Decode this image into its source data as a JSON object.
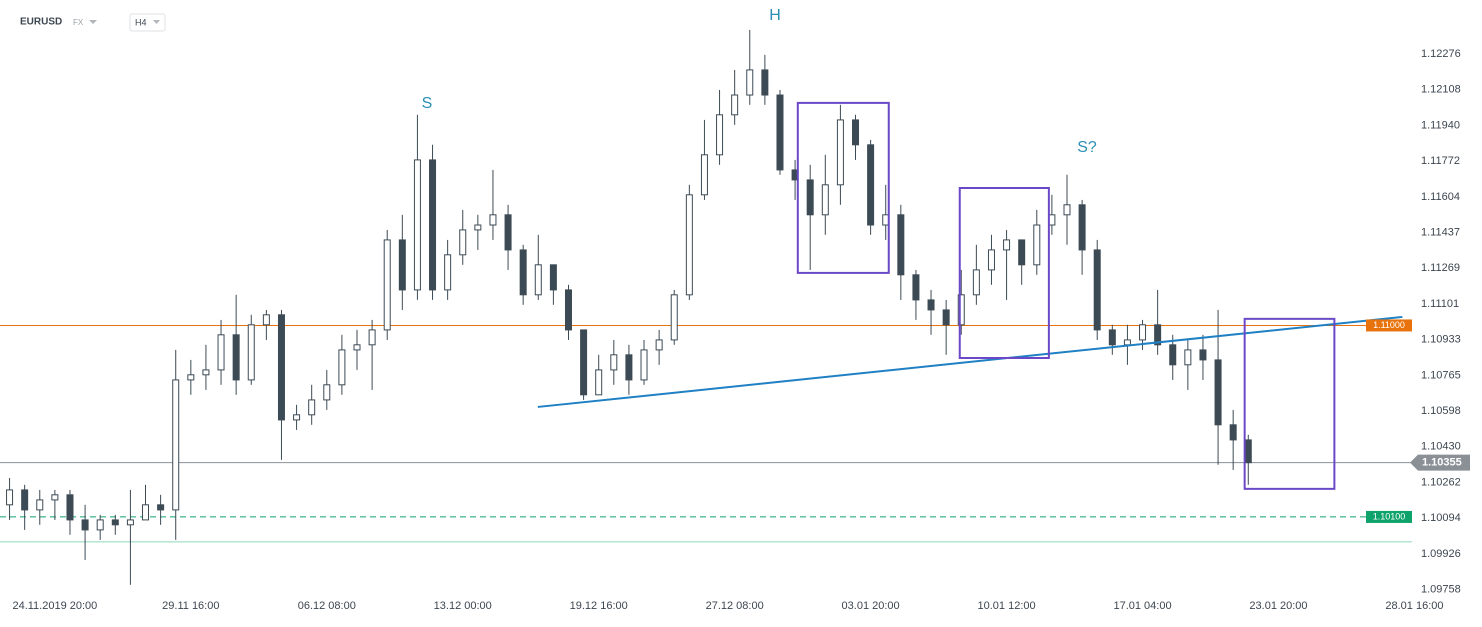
{
  "header": {
    "symbol": "EURUSD",
    "market": "FX",
    "timeframe": "H4"
  },
  "chart_data": {
    "type": "candlestick",
    "categories": [
      null,
      null,
      null,
      "24.11.2019 20:00",
      null,
      null,
      null,
      null,
      null,
      null,
      null,
      null,
      "29.11 16:00",
      null,
      null,
      null,
      null,
      null,
      null,
      null,
      null,
      "06.12 08:00",
      null,
      null,
      null,
      null,
      null,
      null,
      null,
      null,
      "13.12 00:00",
      null,
      null,
      null,
      null,
      null,
      null,
      null,
      null,
      "19.12 16:00",
      null,
      null,
      null,
      null,
      null,
      null,
      null,
      null,
      "27.12 08:00",
      null,
      null,
      null,
      null,
      null,
      null,
      null,
      null,
      "03.01 20:00",
      null,
      null,
      null,
      null,
      null,
      null,
      null,
      null,
      "10.01 12:00",
      null,
      null,
      null,
      null,
      null,
      null,
      null,
      null,
      "17.01 04:00",
      null,
      null,
      null,
      null,
      null,
      null,
      null,
      null,
      "23.01 20:00",
      null,
      null,
      null,
      null,
      null,
      null,
      null,
      null,
      "28.01 16:00"
    ],
    "open": [
      1.10157,
      1.10227,
      1.10133,
      1.1018,
      1.10204,
      1.10086,
      1.10039,
      1.10086,
      1.10063,
      1.10086,
      1.10157,
      1.10133,
      1.10744,
      1.10768,
      1.10791,
      1.10956,
      1.10744,
      1.11003,
      1.1105,
      1.10556,
      1.1058,
      1.1065,
      1.10721,
      1.10885,
      1.10909,
      1.10979,
      1.11402,
      1.11167,
      1.11778,
      1.11167,
      1.11332,
      1.11449,
      1.11472,
      1.1152,
      1.11355,
      1.11144,
      1.11285,
      1.11167,
      1.10979,
      1.10674,
      1.10791,
      1.10862,
      1.10744,
      1.10885,
      1.10932,
      1.11144,
      1.11614,
      1.11802,
      1.1199,
      1.12083,
      1.12201,
      1.12083,
      1.11731,
      1.11684,
      1.1152,
      1.11661,
      1.11966,
      1.11849,
      1.11472,
      1.1152,
      1.11238,
      1.1112,
      1.11073,
      1.11003,
      1.11144,
      1.11261,
      1.11355,
      1.11402,
      1.11285,
      1.11472,
      1.1152,
      1.11567,
      1.11355,
      1.10979,
      1.10909,
      1.10932,
      1.11003,
      1.10909,
      1.10815,
      1.10885,
      1.10838,
      1.10533,
      1.10462,
      null,
      null,
      null,
      null,
      null,
      null,
      null,
      null,
      null,
      null,
      null
    ],
    "high": [
      1.10283,
      1.10251,
      1.10227,
      1.10227,
      1.10227,
      1.10157,
      1.1011,
      1.1011,
      1.10227,
      1.10251,
      1.10204,
      1.10885,
      1.10838,
      1.10909,
      1.11026,
      1.11144,
      1.1105,
      1.11073,
      1.11073,
      1.10627,
      1.10721,
      1.10791,
      1.10956,
      1.10979,
      1.11026,
      1.11449,
      1.1152,
      1.1199,
      1.11849,
      1.11402,
      1.11543,
      1.1152,
      1.11731,
      1.11567,
      1.11379,
      1.11426,
      1.11285,
      1.11191,
      1.10979,
      1.10862,
      1.10932,
      1.10909,
      1.10932,
      1.10979,
      1.11167,
      1.11661,
      1.11966,
      1.12107,
      1.12201,
      1.12389,
      1.12272,
      1.12107,
      1.11778,
      1.11755,
      1.11802,
      1.12037,
      1.1199,
      1.11872,
      1.11661,
      1.11567,
      1.11261,
      1.11167,
      1.1112,
      1.11261,
      1.11379,
      1.11426,
      1.11449,
      1.11402,
      1.11543,
      1.11614,
      1.11708,
      1.1159,
      1.11402,
      1.11003,
      1.11003,
      1.11026,
      1.11167,
      1.10956,
      1.10932,
      1.10956,
      1.11073,
      1.10603,
      1.10486,
      null,
      null,
      null,
      null,
      null,
      null,
      null,
      null,
      null,
      null,
      null
    ],
    "low": [
      1.10086,
      1.10039,
      1.10063,
      1.10086,
      1.10016,
      1.09898,
      1.09992,
      1.10016,
      1.09781,
      1.10086,
      1.10063,
      1.09992,
      1.10674,
      1.10697,
      1.10721,
      1.10674,
      1.10721,
      1.10932,
      1.10368,
      1.10509,
      1.10533,
      1.10603,
      1.10674,
      1.10791,
      1.10697,
      1.10932,
      1.11073,
      1.1112,
      1.1112,
      1.1112,
      1.11285,
      1.11355,
      1.11402,
      1.11261,
      1.11097,
      1.1112,
      1.11097,
      1.10932,
      1.1065,
      1.10674,
      1.10721,
      1.10674,
      1.10721,
      1.10815,
      1.10909,
      1.1112,
      1.1159,
      1.11755,
      1.11943,
      1.12037,
      1.12037,
      1.11708,
      1.1159,
      1.11261,
      1.11426,
      1.11567,
      1.11778,
      1.11426,
      1.11402,
      1.1112,
      1.11026,
      1.10956,
      1.10862,
      1.10956,
      1.11097,
      1.11191,
      1.1112,
      1.11191,
      1.11238,
      1.11426,
      1.11379,
      1.11238,
      1.10932,
      1.10862,
      1.10815,
      1.10885,
      1.10862,
      1.10744,
      1.10697,
      1.10744,
      1.10345,
      1.10321,
      1.10251,
      null,
      null,
      null,
      null,
      null,
      null,
      null,
      null,
      null,
      null,
      null
    ],
    "close": [
      1.10227,
      1.10133,
      1.1018,
      1.10204,
      1.10086,
      1.10039,
      1.10086,
      1.10063,
      1.10086,
      1.10157,
      1.10133,
      1.10744,
      1.10768,
      1.10791,
      1.10956,
      1.10744,
      1.11003,
      1.1105,
      1.10556,
      1.1058,
      1.1065,
      1.10721,
      1.10885,
      1.10909,
      1.10979,
      1.11402,
      1.11167,
      1.11778,
      1.11167,
      1.11332,
      1.11449,
      1.11472,
      1.1152,
      1.11355,
      1.11144,
      1.11285,
      1.11167,
      1.10979,
      1.10674,
      1.10791,
      1.10862,
      1.10744,
      1.10885,
      1.10932,
      1.11144,
      1.11614,
      1.11802,
      1.1199,
      1.12083,
      1.12201,
      1.12083,
      1.11731,
      1.11684,
      1.1152,
      1.11661,
      1.11966,
      1.11849,
      1.11472,
      1.1152,
      1.11238,
      1.1112,
      1.11073,
      1.11003,
      1.11144,
      1.11261,
      1.11355,
      1.11402,
      1.11285,
      1.11472,
      1.1152,
      1.11567,
      1.11355,
      1.10979,
      1.10909,
      1.10932,
      1.11003,
      1.10909,
      1.10815,
      1.10885,
      1.10838,
      1.10533,
      1.10462,
      1.10355,
      null,
      null,
      null,
      null,
      null,
      null,
      null,
      null,
      null,
      null,
      null
    ],
    "color": "#3c4a55",
    "ylim": [
      1.09719,
      1.12492
    ],
    "yticks": [
      1.12276,
      1.12108,
      {
        "value": 1.1194,
        "label": "1.11940"
      },
      1.11772,
      1.11604,
      1.11437,
      1.11269,
      1.11101,
      1.10933,
      1.10765,
      1.10598,
      {
        "value": 1.1043,
        "label": "1.10430"
      },
      1.10262,
      1.10094,
      1.09926,
      1.09758
    ],
    "levels": [
      {
        "value": 1.11,
        "label": "1.11000",
        "color": "#e8730c"
      },
      {
        "value": 1.101,
        "label": "1.10100",
        "color": "#0ea36b",
        "dashed": true
      },
      {
        "value": 1.10355,
        "label": "1.10355",
        "color": "#8a9096"
      },
      {
        "value": 1.09983,
        "color": "#8fd8b8"
      }
    ],
    "trendline": {
      "x": [
        34.97,
        92.2
      ],
      "y": [
        1.10617,
        1.1104
      ],
      "color": "#1f80c4"
    },
    "boxes": [
      {
        "x": [
          52.18,
          58.2
        ],
        "y": [
          1.12046,
          1.11247
        ]
      },
      {
        "x": [
          62.9,
          68.8
        ],
        "y": [
          1.11646,
          1.10847
        ]
      },
      {
        "x": [
          81.76,
          87.7
        ],
        "y": [
          1.11031,
          1.10232
        ]
      }
    ],
    "box_color": "#6b48c8",
    "annotations": [
      {
        "text": "H"
      },
      {
        "text": "S"
      },
      {
        "text": "S?"
      }
    ],
    "annotation_color": "#2a8fb5"
  }
}
